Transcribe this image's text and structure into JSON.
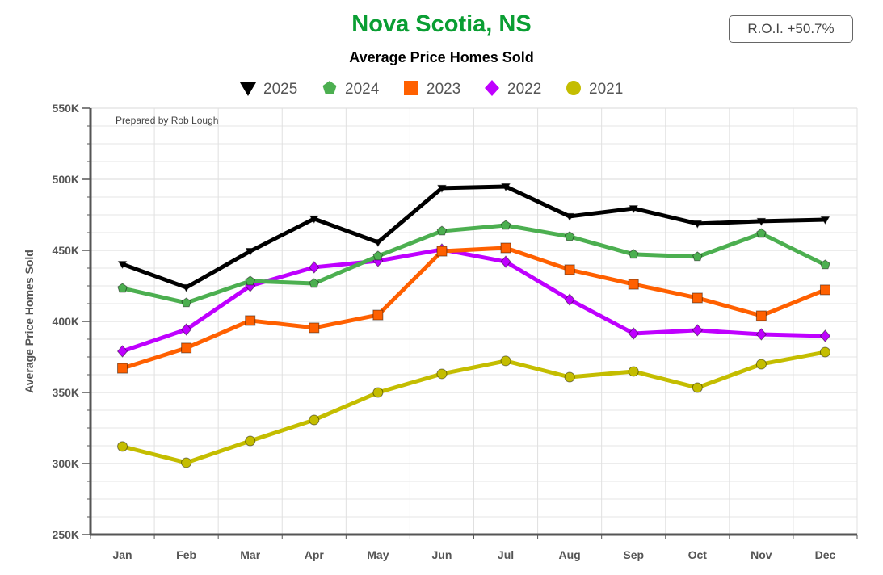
{
  "chart_data": {
    "type": "line",
    "title": "Nova Scotia, NS",
    "subtitle": "Average Price Homes Sold",
    "annotation": "Prepared by Rob Lough",
    "roi_label": "R.O.I. +50.7%",
    "xlabel": "",
    "ylabel": "Average Price Homes Sold",
    "ylim": [
      250000,
      550000
    ],
    "yticks": [
      250000,
      300000,
      350000,
      400000,
      450000,
      500000,
      550000
    ],
    "ytick_labels": [
      "250K",
      "300K",
      "350K",
      "400K",
      "450K",
      "500K",
      "550K"
    ],
    "categories": [
      "Jan",
      "Feb",
      "Mar",
      "Apr",
      "May",
      "Jun",
      "Jul",
      "Aug",
      "Sep",
      "Oct",
      "Nov",
      "Dec"
    ],
    "legend_position": "top-center",
    "grid": true,
    "series": [
      {
        "name": "2025",
        "color": "#000000",
        "marker": "triangle-down",
        "values": [
          440300,
          423900,
          449400,
          472200,
          455700,
          493800,
          494900,
          473900,
          479500,
          468800,
          470500,
          471600
        ]
      },
      {
        "name": "2024",
        "color": "#4caf50",
        "marker": "pentagon",
        "values": [
          423300,
          413100,
          428400,
          426700,
          446000,
          463600,
          467600,
          459700,
          447200,
          445500,
          461900,
          439800
        ]
      },
      {
        "name": "2023",
        "color": "#ff6000",
        "marker": "square",
        "values": [
          367000,
          381300,
          400600,
          395500,
          404500,
          449400,
          451700,
          436400,
          426100,
          416500,
          404000,
          422200
        ]
      },
      {
        "name": "2022",
        "color": "#bf00ff",
        "marker": "diamond",
        "values": [
          379000,
          394300,
          425000,
          438100,
          442600,
          450600,
          442000,
          415300,
          391500,
          393800,
          390900,
          389800
        ]
      },
      {
        "name": "2021",
        "color": "#c4bd00",
        "marker": "circle",
        "values": [
          312000,
          300600,
          315900,
          330700,
          350000,
          363100,
          372200,
          360800,
          364800,
          353400,
          369900,
          378400
        ]
      }
    ]
  }
}
